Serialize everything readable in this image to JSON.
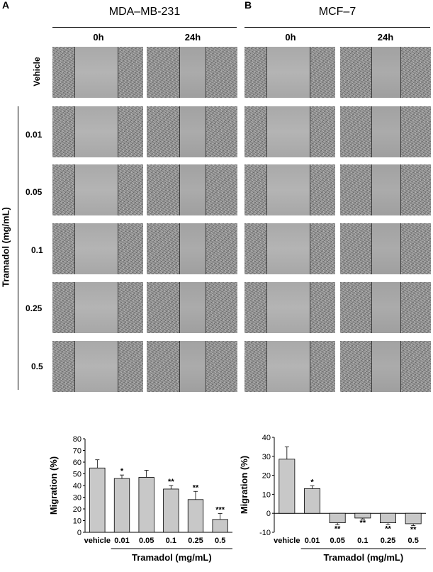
{
  "panels": {
    "a_letter": "A",
    "b_letter": "B",
    "a_title": "MDA–MB-231",
    "b_title": "MCF–7",
    "time_0h": "0h",
    "time_24h": "24h"
  },
  "rows": {
    "vehicle": "Vehicle",
    "axis_label": "Tramadol (mg/mL)",
    "doses": [
      "0.01",
      "0.05",
      "0.1",
      "0.25",
      "0.5"
    ]
  },
  "chart_data": [
    {
      "type": "bar",
      "categories": [
        "vehicle",
        "0.01",
        "0.05",
        "0.1",
        "0.25",
        "0.5"
      ],
      "values": [
        55,
        46,
        47,
        37,
        28,
        11
      ],
      "errors": [
        7,
        3,
        6,
        3,
        7,
        5
      ],
      "significance": [
        "",
        "*",
        "",
        "**",
        "**",
        "***"
      ],
      "xlabel": "Tramadol (mg/mL)",
      "ylabel": "Migration (%)",
      "ylim": [
        0,
        80
      ],
      "yticks": [
        0,
        10,
        20,
        30,
        40,
        50,
        60,
        70,
        80
      ],
      "bar_color": "#c8c8c8"
    },
    {
      "type": "bar",
      "categories": [
        "vehicle",
        "0.01",
        "0.05",
        "0.1",
        "0.25",
        "0.5"
      ],
      "values": [
        28.5,
        13,
        -5,
        -2.5,
        -5,
        -5.5
      ],
      "errors": [
        6.5,
        1.5,
        1,
        0.5,
        1,
        1
      ],
      "significance": [
        "",
        "*",
        "**",
        "**",
        "**",
        "**"
      ],
      "xlabel": "Tramadol (mg/mL)",
      "ylabel": "Migration (%)",
      "ylim": [
        -10,
        40
      ],
      "yticks": [
        -10,
        0,
        10,
        20,
        30,
        40
      ],
      "bar_color": "#c8c8c8"
    }
  ]
}
